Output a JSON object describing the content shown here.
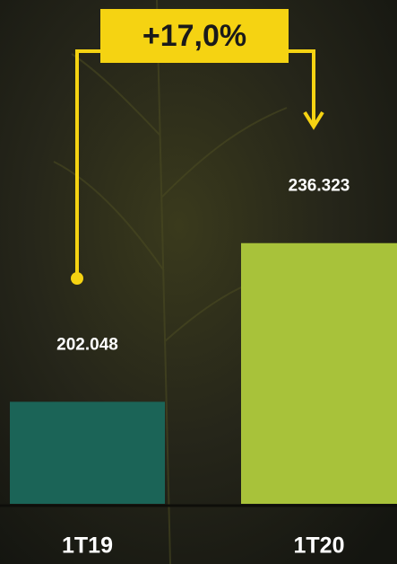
{
  "chart_data": {
    "type": "bar",
    "annotation": "+17,0%",
    "categories": [
      "1T19",
      "1T20"
    ],
    "values": [
      202048,
      236323
    ],
    "value_labels": [
      "202.048",
      "236.323"
    ],
    "colors": [
      "#1b6457",
      "#a8c23a"
    ],
    "ylim": [
      180000,
      245000
    ]
  }
}
